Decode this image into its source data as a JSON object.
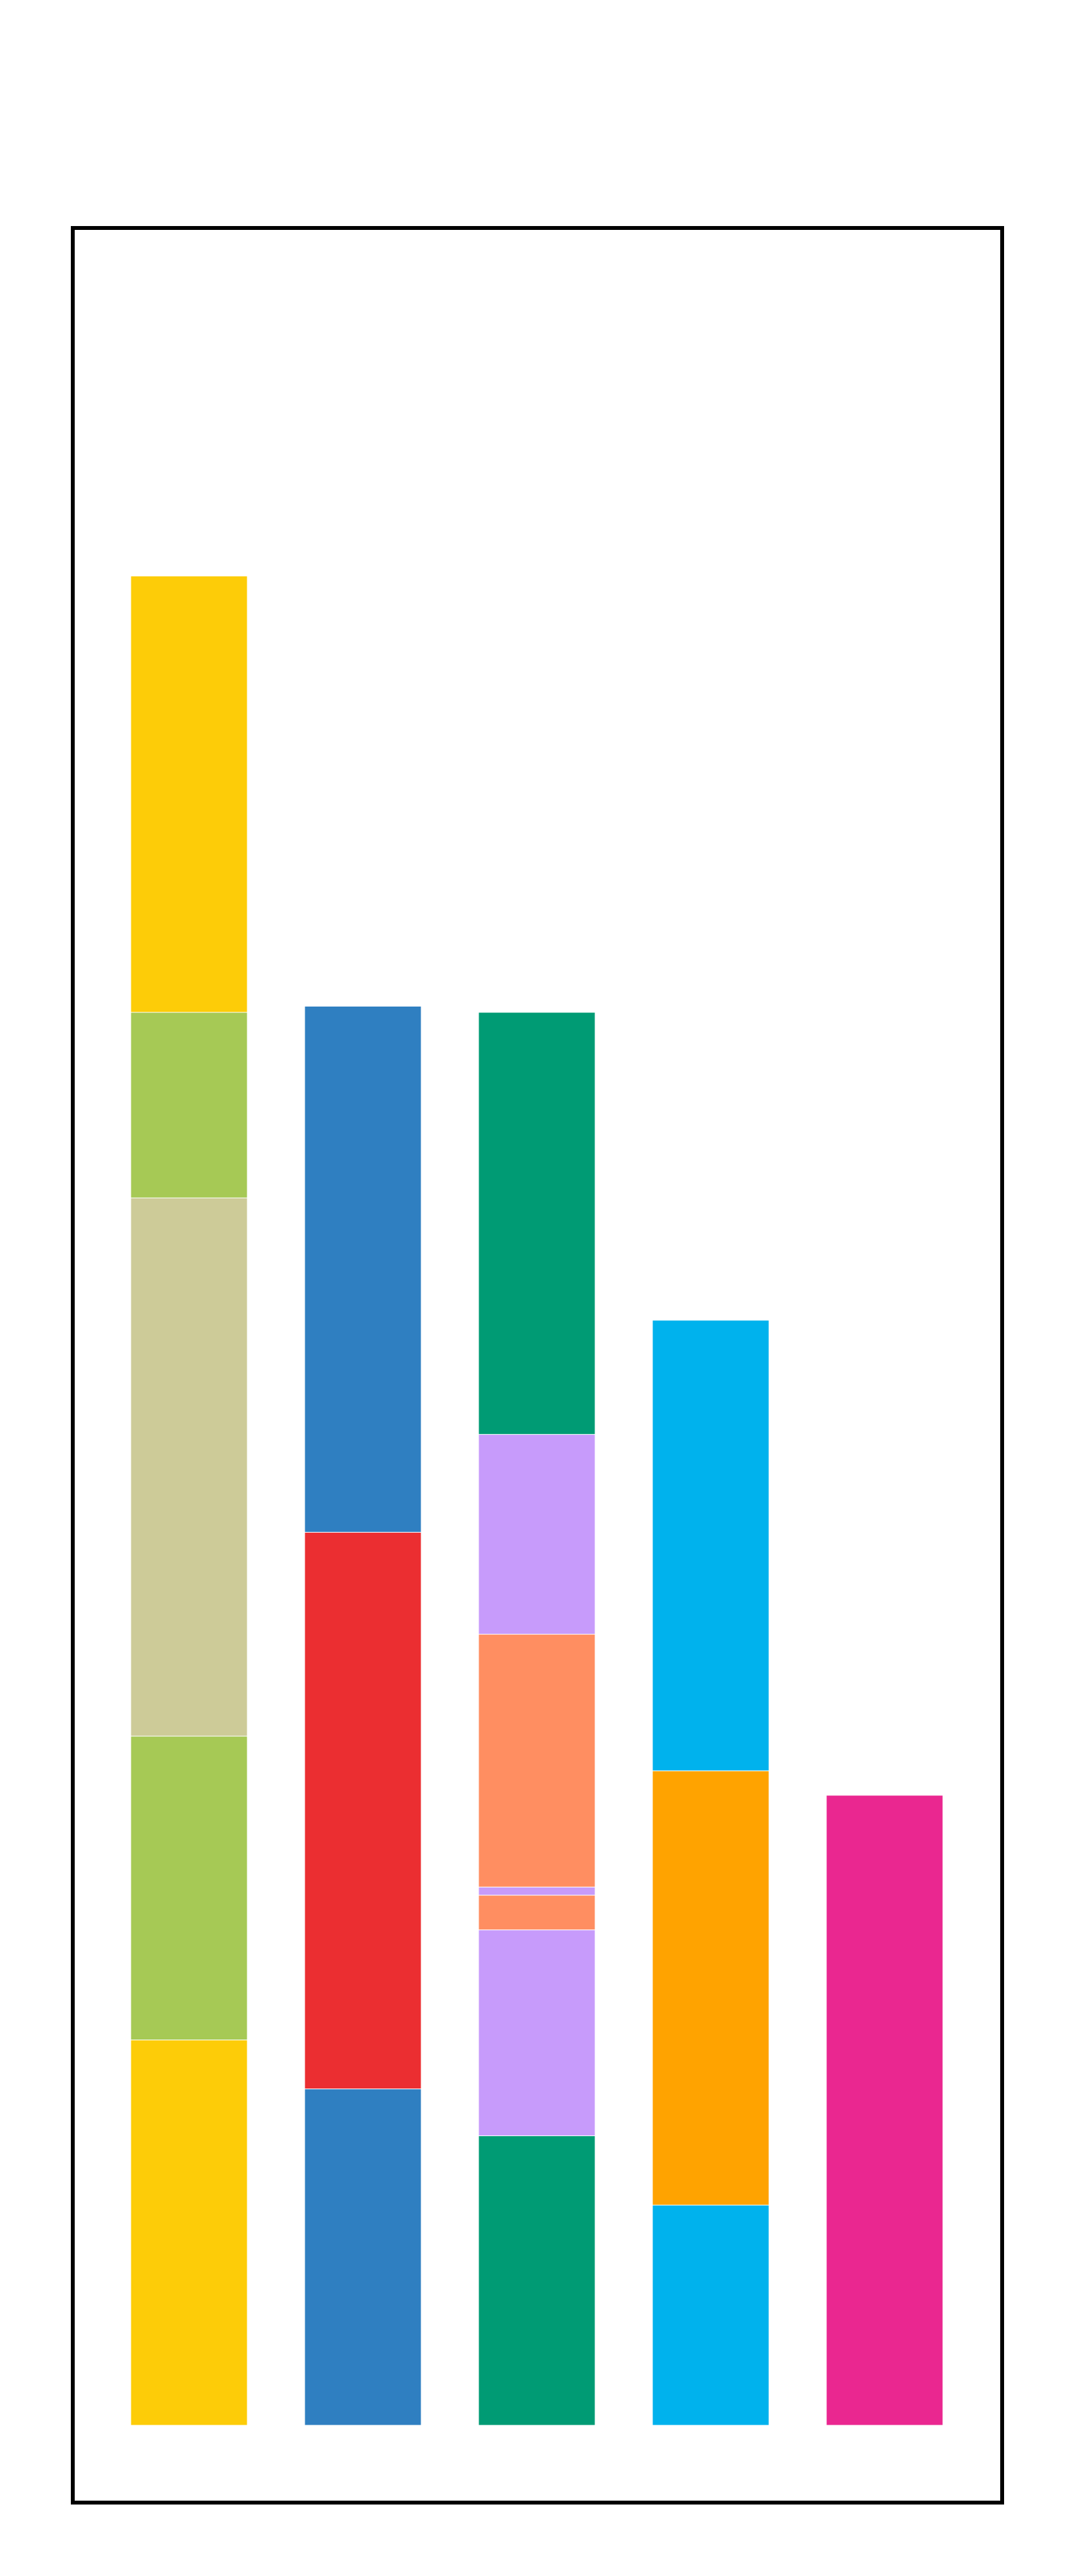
{
  "chart_data": {
    "type": "bar",
    "stacked": true,
    "title": "",
    "xlabel": "",
    "ylabel": "",
    "grid": false,
    "legend": "none",
    "axes_frame": true,
    "ylim": [
      0,
      1
    ],
    "stacks": [
      {
        "name": "",
        "segments": [
          {
            "value": 0.189,
            "color": "#FDCC08"
          },
          {
            "value": 0.149,
            "color": "#A6C955"
          },
          {
            "value": 0.264,
            "color": "#CDCB98"
          },
          {
            "value": 0.091,
            "color": "#A6C955"
          },
          {
            "value": 0.214,
            "color": "#FDCC08"
          }
        ]
      },
      {
        "name": "",
        "segments": [
          {
            "value": 0.165,
            "color": "#2F7FC1"
          },
          {
            "value": 0.273,
            "color": "#EB2E31"
          },
          {
            "value": 0.258,
            "color": "#2F7FC1"
          }
        ]
      },
      {
        "name": "",
        "segments": [
          {
            "value": 0.142,
            "color": "#009B74"
          },
          {
            "value": 0.101,
            "color": "#C79BFB"
          },
          {
            "value": 0.017,
            "color": "#FF8E61"
          },
          {
            "value": 0.004,
            "color": "#C79BFB"
          },
          {
            "value": 0.124,
            "color": "#FF8E61"
          },
          {
            "value": 0.098,
            "color": "#C79BFB"
          },
          {
            "value": 0.207,
            "color": "#009B74"
          }
        ]
      },
      {
        "name": "",
        "segments": [
          {
            "value": 0.108,
            "color": "#00B2ED"
          },
          {
            "value": 0.213,
            "color": "#FFA300"
          },
          {
            "value": 0.221,
            "color": "#00B2ED"
          }
        ]
      },
      {
        "name": "",
        "segments": [
          {
            "value": 0.309,
            "color": "#EA2790"
          }
        ]
      }
    ]
  }
}
